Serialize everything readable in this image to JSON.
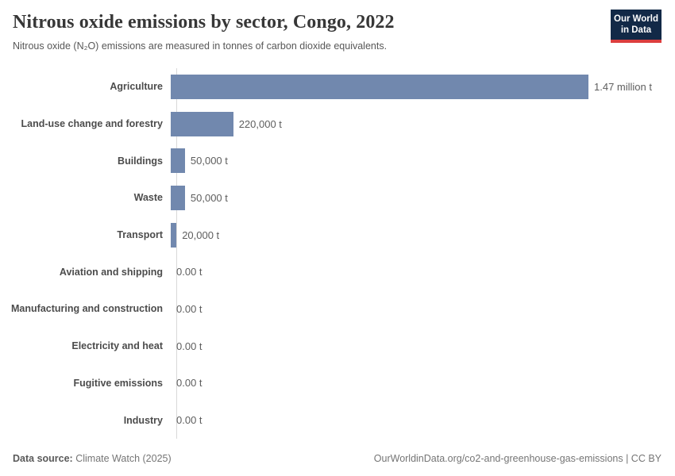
{
  "header": {
    "title": "Nitrous oxide emissions by sector, Congo, 2022",
    "subtitle": "Nitrous oxide (N₂O) emissions are measured in tonnes of carbon dioxide equivalents.",
    "logo": {
      "line1": "Our World",
      "line2": "in Data",
      "bg_color": "#122947",
      "accent_color": "#dc3e3e"
    }
  },
  "chart_data": {
    "type": "bar",
    "orientation": "horizontal",
    "title": "Nitrous oxide emissions by sector, Congo, 2022",
    "subtitle": "Nitrous oxide (N₂O) emissions are measured in tonnes of carbon dioxide equivalents.",
    "unit": "tonnes of CO₂ equivalents",
    "categories": [
      "Agriculture",
      "Land-use change and forestry",
      "Buildings",
      "Waste",
      "Transport",
      "Aviation and shipping",
      "Manufacturing and construction",
      "Electricity and heat",
      "Fugitive emissions",
      "Industry"
    ],
    "values": [
      1470000,
      220000,
      50000,
      50000,
      20000,
      0,
      0,
      0,
      0,
      0
    ],
    "value_labels": [
      "1.47 million t",
      "220,000 t",
      "50,000 t",
      "50,000 t",
      "20,000 t",
      "0.00 t",
      "0.00 t",
      "0.00 t",
      "0.00 t",
      "0.00 t"
    ],
    "xlim": [
      0,
      1470000
    ],
    "bar_color": "#7188ae",
    "axis_line_color": "#d9d9d9",
    "grid": false,
    "legend_position": "none"
  },
  "footer": {
    "datasource_label": "Data source:",
    "datasource_value": "Climate Watch (2025)",
    "credit": "OurWorldinData.org/co2-and-greenhouse-gas-emissions | CC BY"
  }
}
